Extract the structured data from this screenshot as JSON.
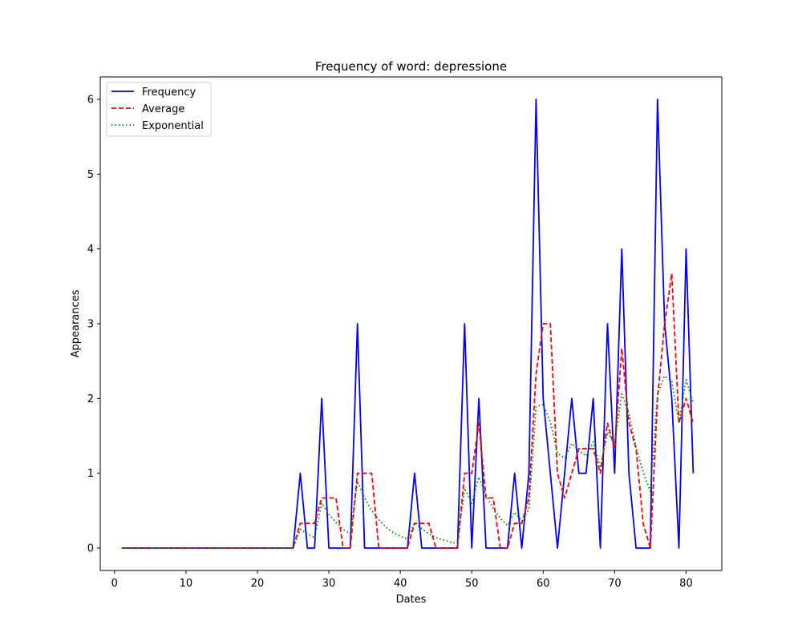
{
  "chart_data": {
    "type": "line",
    "title": "Frequency of word: depressione",
    "xlabel": "Dates",
    "ylabel": "Appearances",
    "xlim": [
      -2,
      85
    ],
    "ylim": [
      -0.3,
      6.3
    ],
    "xticks": [
      0,
      10,
      20,
      30,
      40,
      50,
      60,
      70,
      80
    ],
    "yticks": [
      0,
      1,
      2,
      3,
      4,
      5,
      6
    ],
    "legend_position": "top-left",
    "grid": false,
    "legend": {
      "frequency": "Frequency",
      "average": "Average",
      "exponential": "Exponential"
    },
    "x": [
      1,
      2,
      3,
      4,
      5,
      6,
      7,
      8,
      9,
      10,
      11,
      12,
      13,
      14,
      15,
      16,
      17,
      18,
      19,
      20,
      21,
      22,
      23,
      24,
      25,
      26,
      27,
      28,
      29,
      30,
      31,
      32,
      33,
      34,
      35,
      36,
      37,
      38,
      39,
      40,
      41,
      42,
      43,
      44,
      45,
      46,
      47,
      48,
      49,
      50,
      51,
      52,
      53,
      54,
      55,
      56,
      57,
      58,
      59,
      60,
      61,
      62,
      63,
      64,
      65,
      66,
      67,
      68,
      69,
      70,
      71,
      72,
      73,
      74,
      75,
      76,
      77,
      78,
      79,
      80,
      81
    ],
    "series": [
      {
        "name": "Frequency",
        "color": "#0000ff",
        "style": "solid",
        "values": [
          0,
          0,
          0,
          0,
          0,
          0,
          0,
          0,
          0,
          0,
          0,
          0,
          0,
          0,
          0,
          0,
          0,
          0,
          0,
          0,
          0,
          0,
          0,
          0,
          0,
          1,
          0,
          0,
          2,
          0,
          0,
          0,
          0,
          3,
          0,
          0,
          0,
          0,
          0,
          0,
          0,
          1,
          0,
          0,
          0,
          0,
          0,
          0,
          3,
          0,
          2,
          0,
          0,
          0,
          0,
          1,
          0,
          1,
          6,
          2,
          1,
          0,
          1,
          2,
          1,
          1,
          2,
          0,
          3,
          1,
          4,
          1,
          0,
          0,
          0,
          6,
          3,
          2,
          0,
          4,
          1
        ]
      },
      {
        "name": "Average",
        "color": "#ff0000",
        "style": "dashed",
        "values": [
          0,
          0,
          0,
          0,
          0,
          0,
          0,
          0,
          0,
          0,
          0,
          0,
          0,
          0,
          0,
          0,
          0,
          0,
          0,
          0,
          0,
          0,
          0,
          0,
          0,
          0.33,
          0.33,
          0.33,
          0.67,
          0.67,
          0.67,
          0,
          0,
          1,
          1,
          1,
          0,
          0,
          0,
          0,
          0,
          0.33,
          0.33,
          0.33,
          0,
          0,
          0,
          0,
          1,
          1,
          1.67,
          0.67,
          0.67,
          0,
          0,
          0.33,
          0.33,
          0.67,
          2.33,
          3,
          3,
          1,
          0.67,
          1,
          1.33,
          1.33,
          1.33,
          1,
          1.67,
          1.33,
          2.67,
          1.67,
          1.33,
          0.33,
          0,
          2,
          3,
          3.67,
          1.67,
          2,
          1.67
        ]
      },
      {
        "name": "Exponential",
        "color": "#008000",
        "style": "dotted",
        "values": [
          0,
          0,
          0,
          0,
          0,
          0,
          0,
          0,
          0,
          0,
          0,
          0,
          0,
          0,
          0,
          0,
          0,
          0,
          0,
          0,
          0,
          0,
          0,
          0,
          0,
          0.25,
          0.19,
          0.14,
          0.6,
          0.45,
          0.34,
          0.25,
          0.19,
          0.89,
          0.67,
          0.5,
          0.38,
          0.28,
          0.21,
          0.16,
          0.12,
          0.34,
          0.26,
          0.19,
          0.14,
          0.11,
          0.08,
          0.06,
          0.8,
          0.6,
          0.95,
          0.71,
          0.53,
          0.4,
          0.3,
          0.48,
          0.36,
          0.52,
          1.89,
          1.92,
          1.69,
          1.27,
          1.2,
          1.4,
          1.3,
          1.23,
          1.42,
          1.07,
          1.55,
          1.41,
          2.06,
          1.8,
          1.35,
          1.01,
          0.76,
          2.07,
          2.3,
          2.23,
          1.67,
          2.25,
          1.94
        ]
      }
    ]
  }
}
